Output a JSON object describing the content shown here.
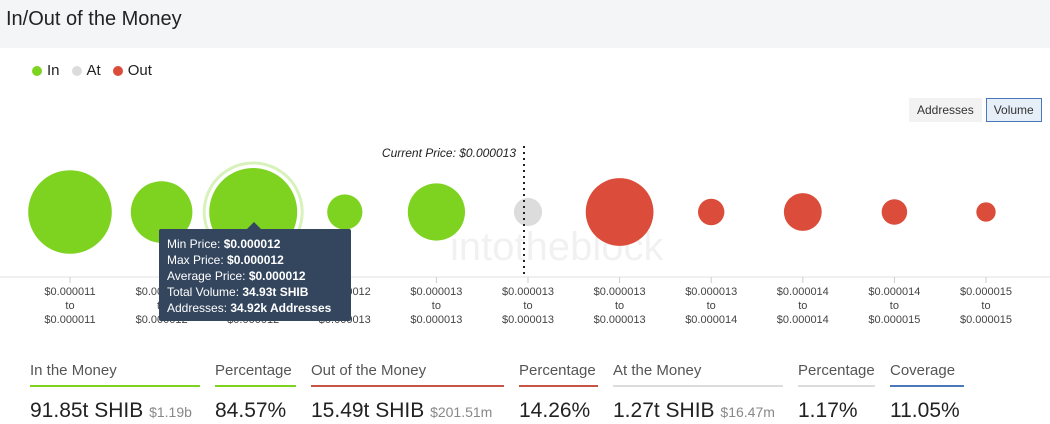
{
  "page": {
    "title": "In/Out of the Money"
  },
  "legend": [
    {
      "label": "In",
      "color": "#7ed321"
    },
    {
      "label": "At",
      "color": "#dcdcdc"
    },
    {
      "label": "Out",
      "color": "#db4c3a"
    }
  ],
  "toggle": {
    "addresses_label": "Addresses",
    "volume_label": "Volume",
    "active": "Volume"
  },
  "chart_data": {
    "type": "bubble",
    "current_price_label": "Current Price: $0.000013",
    "current_price_index": 5,
    "watermark": "intotheblock",
    "colors": {
      "in": "#7ed321",
      "at": "#dcdcdc",
      "out": "#db4c3a"
    },
    "buckets": [
      {
        "from": "$0.000011",
        "to": "$0.000011",
        "status": "in",
        "relative_size": 0.95
      },
      {
        "from": "$0.000012",
        "to": "$0.000012",
        "status": "in",
        "relative_size": 0.7
      },
      {
        "from": "$0.000012",
        "to": "$0.000012",
        "status": "in",
        "relative_size": 1.0,
        "highlighted": true
      },
      {
        "from": "$0.000012",
        "to": "$0.000013",
        "status": "in",
        "relative_size": 0.4
      },
      {
        "from": "$0.000013",
        "to": "$0.000013",
        "status": "in",
        "relative_size": 0.65
      },
      {
        "from": "$0.000013",
        "to": "$0.000013",
        "status": "at",
        "relative_size": 0.32
      },
      {
        "from": "$0.000013",
        "to": "$0.000013",
        "status": "out",
        "relative_size": 0.77
      },
      {
        "from": "$0.000013",
        "to": "$0.000014",
        "status": "out",
        "relative_size": 0.3
      },
      {
        "from": "$0.000014",
        "to": "$0.000014",
        "status": "out",
        "relative_size": 0.43
      },
      {
        "from": "$0.000014",
        "to": "$0.000015",
        "status": "out",
        "relative_size": 0.29
      },
      {
        "from": "$0.000015",
        "to": "$0.000015",
        "status": "out",
        "relative_size": 0.22
      }
    ],
    "range_word": "to"
  },
  "tooltip": {
    "lines": [
      {
        "label": "Min Price: ",
        "value": "$0.000012"
      },
      {
        "label": "Max Price: ",
        "value": "$0.000012"
      },
      {
        "label": "Average Price: ",
        "value": "$0.000012"
      },
      {
        "label": "Total Volume: ",
        "value": "34.93t SHIB"
      },
      {
        "label": "Addresses: ",
        "value": "34.92k Addresses"
      }
    ]
  },
  "stats": [
    {
      "label": "In the Money",
      "value": "91.85t SHIB",
      "sub": "$1.19b",
      "underline": "#7ed321"
    },
    {
      "label": "Percentage",
      "value": "84.57%",
      "sub": "",
      "underline": "#7ed321"
    },
    {
      "label": "Out of the Money",
      "value": "15.49t SHIB",
      "sub": "$201.51m",
      "underline": "#c65548"
    },
    {
      "label": "Percentage",
      "value": "14.26%",
      "sub": "",
      "underline": "#c65548"
    },
    {
      "label": "At the Money",
      "value": "1.27t SHIB",
      "sub": "$16.47m",
      "underline": "#dcdcdc"
    },
    {
      "label": "Percentage",
      "value": "1.17%",
      "sub": "",
      "underline": "#dcdcdc"
    },
    {
      "label": "Coverage",
      "value": "11.05%",
      "sub": "",
      "underline": "#4a78b8"
    }
  ]
}
